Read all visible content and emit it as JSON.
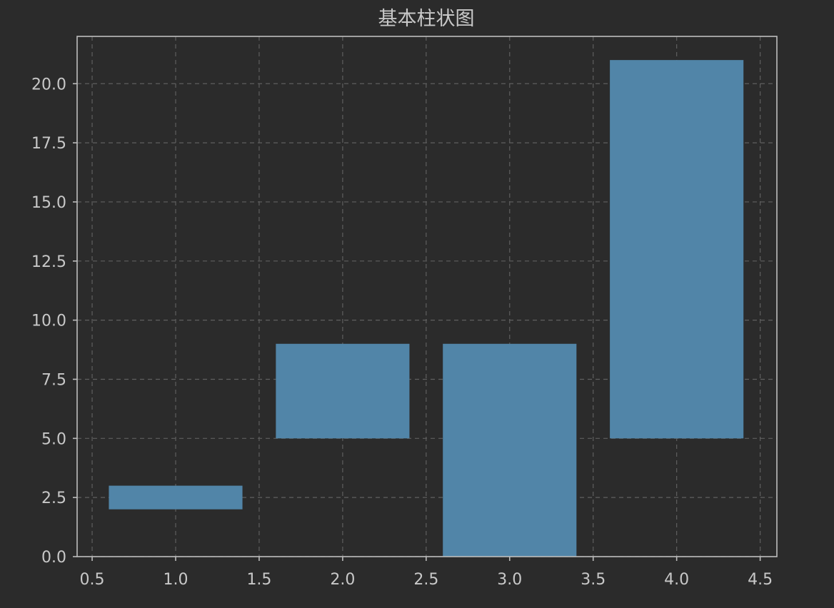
{
  "chart_data": {
    "type": "bar",
    "title": "基本柱状图",
    "xlabel": "",
    "ylabel": "",
    "bar_color": "#5185a8",
    "background_color": "#2b2b2b",
    "grid": true,
    "grid_style": "dashed",
    "xlim": [
      0.41,
      4.6
    ],
    "ylim": [
      0,
      22
    ],
    "bar_width": 0.8,
    "x_ticks": [
      0.5,
      1.0,
      1.5,
      2.0,
      2.5,
      3.0,
      3.5,
      4.0,
      4.5
    ],
    "x_tick_labels": [
      "0.5",
      "1.0",
      "1.5",
      "2.0",
      "2.5",
      "3.0",
      "3.5",
      "4.0",
      "4.5"
    ],
    "y_ticks": [
      0,
      2.5,
      5,
      7.5,
      10,
      12.5,
      15,
      17.5,
      20
    ],
    "y_tick_labels": [
      "0.0",
      "2.5",
      "5.0",
      "7.5",
      "10.0",
      "12.5",
      "15.0",
      "17.5",
      "20.0"
    ],
    "bars": [
      {
        "x": 1,
        "bottom": 2,
        "top": 3
      },
      {
        "x": 2,
        "bottom": 5,
        "top": 9
      },
      {
        "x": 3,
        "bottom": 0,
        "top": 9
      },
      {
        "x": 4,
        "bottom": 5,
        "top": 21
      }
    ]
  }
}
